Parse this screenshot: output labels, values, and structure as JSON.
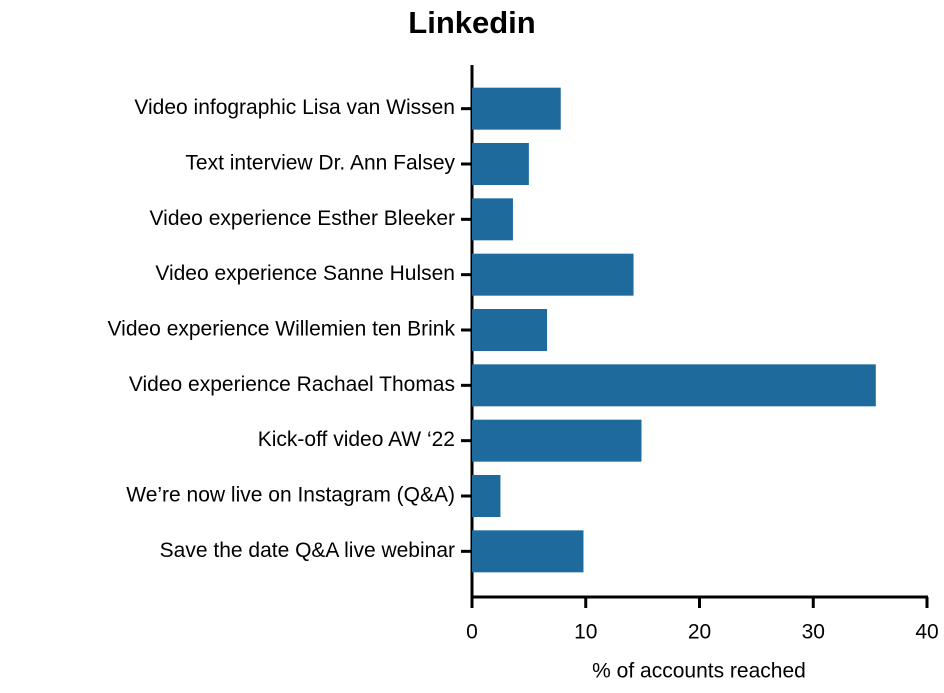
{
  "chart_data": {
    "type": "bar",
    "orientation": "horizontal",
    "title": "Linkedin",
    "categories": [
      "Video infographic Lisa van Wissen",
      "Text interview Dr. Ann Falsey",
      "Video experience Esther Bleeker",
      "Video experience Sanne Hulsen",
      "Video experience Willemien ten Brink",
      "Video experience Rachael Thomas",
      "Kick-off video AW ‘22",
      "We’re now live on Instagram (Q&A)",
      "Save the date Q&A live webinar"
    ],
    "values": [
      7.8,
      5.0,
      3.6,
      14.2,
      6.6,
      35.5,
      14.9,
      2.5,
      9.8
    ],
    "color": "#1f6a9c",
    "x_label": "% of accounts reached",
    "xlim": [
      0,
      40
    ],
    "xticks": [
      0,
      10,
      20,
      30,
      40
    ],
    "grid": false
  }
}
